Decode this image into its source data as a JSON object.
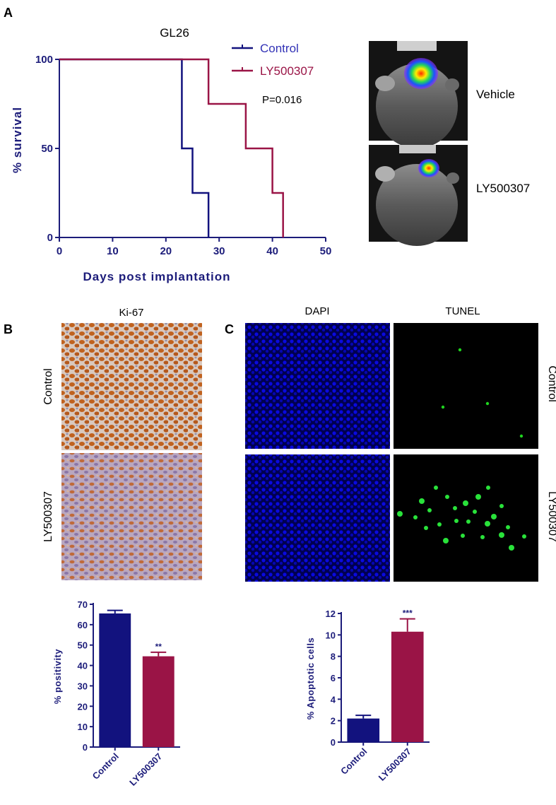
{
  "panels": {
    "a": "A",
    "b": "B",
    "c": "C"
  },
  "km": {
    "title": "GL26",
    "pvalue": "P=0.016",
    "ylabel": "% survival",
    "xlabel": "Days post implantation",
    "legend": [
      "Control",
      "LY500307"
    ]
  },
  "imaging": {
    "labels": [
      "Vehicle",
      "LY500307"
    ]
  },
  "ki67": {
    "header": "Ki-67",
    "rows": [
      "Control",
      "LY500307"
    ]
  },
  "tunel": {
    "headers": [
      "DAPI",
      "TUNEL"
    ],
    "rows": [
      "Control",
      "LY500307"
    ]
  },
  "colors": {
    "control": "#12127e",
    "treatment": "#9a1446",
    "axis": "#1c1c7a"
  },
  "chart_data": [
    {
      "type": "line",
      "subtype": "kaplan-meier step",
      "title": "GL26",
      "xlabel": "Days post implantation",
      "ylabel": "% survival",
      "xlim": [
        0,
        50
      ],
      "ylim": [
        0,
        100
      ],
      "xticks": [
        0,
        10,
        20,
        30,
        40,
        50
      ],
      "yticks": [
        0,
        50,
        100
      ],
      "annotation": "P=0.016",
      "legend_position": "top",
      "series": [
        {
          "name": "Control",
          "color": "#12127e",
          "steps": [
            [
              0,
              100
            ],
            [
              23,
              50
            ],
            [
              25,
              25
            ],
            [
              28,
              0
            ]
          ]
        },
        {
          "name": "LY500307",
          "color": "#9a1446",
          "steps": [
            [
              0,
              100
            ],
            [
              28,
              75
            ],
            [
              35,
              50
            ],
            [
              40,
              25
            ],
            [
              42,
              0
            ]
          ]
        }
      ]
    },
    {
      "type": "bar",
      "ylabel": "% positivity",
      "categories": [
        "Control",
        "LY500307"
      ],
      "values": [
        65.5,
        44.5
      ],
      "errors": [
        1.5,
        2
      ],
      "ylim": [
        0,
        70
      ],
      "yticks": [
        0,
        10,
        20,
        30,
        40,
        50,
        60,
        70
      ],
      "annotations": [
        "",
        "**"
      ]
    },
    {
      "type": "bar",
      "ylabel": "% Apoptotic cells",
      "categories": [
        "Control",
        "LY500307"
      ],
      "values": [
        2.2,
        10.3
      ],
      "errors": [
        0.3,
        1.2
      ],
      "ylim": [
        0,
        12
      ],
      "yticks": [
        0,
        2,
        4,
        6,
        8,
        10,
        12
      ],
      "annotations": [
        "",
        "***"
      ]
    }
  ]
}
